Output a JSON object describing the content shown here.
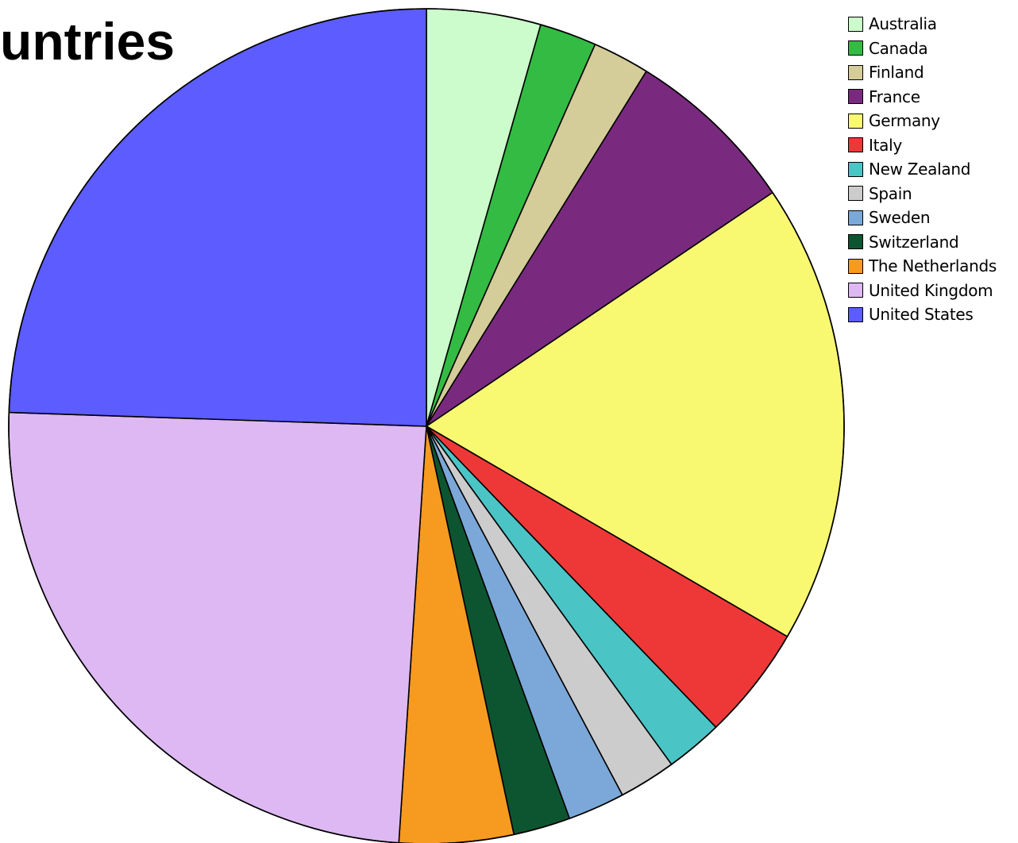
{
  "chart_data": {
    "type": "pie",
    "title": "untries",
    "legend_position": "top-right",
    "start_angle_deg": 0,
    "direction": "clockwise",
    "slices": [
      {
        "label": "Australia",
        "value": 4.4,
        "color": "#ccfccc"
      },
      {
        "label": "Canada",
        "value": 2.2,
        "color": "#33bb44"
      },
      {
        "label": "Finland",
        "value": 2.2,
        "color": "#d4cc99"
      },
      {
        "label": "France",
        "value": 6.7,
        "color": "#7a2a7e"
      },
      {
        "label": "Germany",
        "value": 17.8,
        "color": "#f9f871"
      },
      {
        "label": "Italy",
        "value": 4.4,
        "color": "#ee3838"
      },
      {
        "label": "New Zealand",
        "value": 2.2,
        "color": "#4bc4c6"
      },
      {
        "label": "Spain",
        "value": 2.2,
        "color": "#cccccc"
      },
      {
        "label": "Sweden",
        "value": 2.2,
        "color": "#7ba8d8"
      },
      {
        "label": "Switzerland",
        "value": 2.2,
        "color": "#0d5530"
      },
      {
        "label": "The Netherlands",
        "value": 4.4,
        "color": "#f79a20"
      },
      {
        "label": "United Kingdom",
        "value": 24.4,
        "color": "#ddb8f2"
      },
      {
        "label": "United States",
        "value": 24.4,
        "color": "#5c5cff"
      }
    ]
  }
}
